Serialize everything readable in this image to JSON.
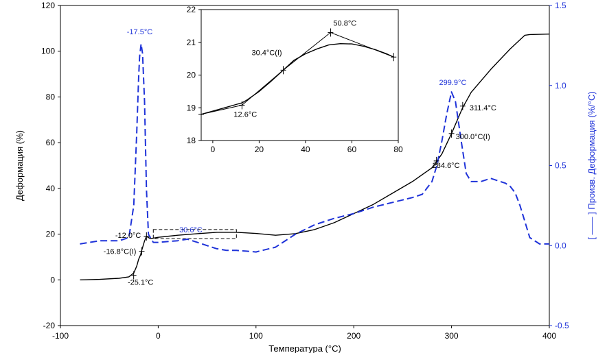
{
  "chart_data": {
    "type": "line",
    "xlabel": "Температура (°C)",
    "ylabel_left": "Деформация (%)",
    "ylabel_right": "[ —— ] Произв. Деформация (%/°C)",
    "xlim": [
      -100,
      400
    ],
    "ylim_left": [
      -20,
      120
    ],
    "ylim_right": [
      -0.5,
      1.5
    ],
    "x_ticks": [
      "-100",
      "0",
      "100",
      "200",
      "300",
      "400"
    ],
    "y_left_ticks": [
      "-20",
      "0",
      "20",
      "40",
      "60",
      "80",
      "100",
      "120"
    ],
    "y_right_ticks": [
      "-0.5",
      "0.0",
      "0.5",
      "1.0",
      "1.5"
    ],
    "colors": {
      "deformation": "#000000",
      "derivative": "#1f33d9",
      "axis_right": "#1f33d9"
    },
    "series": [
      {
        "axis": "left",
        "style": "solid",
        "color": "#000000",
        "x": [
          -80,
          -60,
          -40,
          -30,
          -25,
          -22,
          -20,
          -18,
          -16.8,
          -14,
          -12,
          -10,
          -8,
          0,
          20,
          40,
          60,
          80,
          100,
          120,
          140,
          160,
          180,
          200,
          220,
          240,
          260,
          280,
          290,
          300,
          311,
          320,
          340,
          360,
          370,
          375,
          380,
          400
        ],
        "y": [
          0,
          0.2,
          0.7,
          1.3,
          3,
          6,
          9,
          11,
          13,
          17,
          19,
          18.5,
          18,
          18.6,
          19.5,
          20.2,
          20.8,
          20.8,
          20.3,
          19.5,
          20.2,
          22,
          25,
          29,
          33,
          38,
          43,
          49,
          55,
          64,
          75,
          82,
          92,
          101,
          105,
          107,
          107.3,
          107.5
        ]
      },
      {
        "axis": "right",
        "style": "dashed",
        "color": "#1f33d9",
        "x": [
          -80,
          -60,
          -40,
          -30,
          -25,
          -22,
          -20,
          -19,
          -17.5,
          -16,
          -14,
          -12,
          -10,
          -5,
          0,
          10,
          20,
          30,
          40,
          50,
          60,
          70,
          80,
          90,
          100,
          120,
          140,
          160,
          180,
          200,
          220,
          240,
          260,
          270,
          280,
          285,
          290,
          295,
          299.9,
          304,
          310,
          315,
          320,
          330,
          340,
          350,
          355,
          360,
          365,
          370,
          375,
          380,
          390,
          400
        ],
        "y": [
          0.01,
          0.03,
          0.03,
          0.05,
          0.25,
          0.7,
          1.05,
          1.18,
          1.26,
          1.2,
          0.9,
          0.35,
          0.07,
          0.02,
          0.02,
          0.025,
          0.03,
          0.04,
          0.02,
          0,
          -0.02,
          -0.03,
          -0.03,
          -0.035,
          -0.04,
          -0.01,
          0.07,
          0.13,
          0.17,
          0.2,
          0.24,
          0.27,
          0.3,
          0.32,
          0.4,
          0.5,
          0.65,
          0.82,
          0.96,
          0.9,
          0.65,
          0.45,
          0.4,
          0.4,
          0.42,
          0.4,
          0.39,
          0.37,
          0.33,
          0.25,
          0.15,
          0.05,
          0.01,
          0.01
        ]
      }
    ],
    "annotations": [
      {
        "text": "-17.5°C",
        "x": -17.5,
        "y": 1.26,
        "axis": "right",
        "color": "#1f33d9"
      },
      {
        "text": "30.6°C",
        "x": 30.6,
        "y": 0.04,
        "axis": "right",
        "color": "#1f33d9"
      },
      {
        "text": "299.9°C",
        "x": 299.9,
        "y": 0.96,
        "axis": "right",
        "color": "#1f33d9"
      },
      {
        "text": "-12.0°C",
        "x": -12,
        "y": 19,
        "axis": "left",
        "color": "#000000"
      },
      {
        "text": "-16.8°C(I)",
        "x": -16.8,
        "y": 12.5,
        "axis": "left",
        "color": "#000000"
      },
      {
        "text": "-25.1°C",
        "x": -25.1,
        "y": 2,
        "axis": "left",
        "color": "#000000"
      },
      {
        "text": "311.4°C",
        "x": 311.4,
        "y": 76,
        "axis": "left",
        "color": "#000000"
      },
      {
        "text": "300.0°C(I)",
        "x": 300,
        "y": 64,
        "axis": "left",
        "color": "#000000"
      },
      {
        "text": "284.6°C",
        "x": 284.6,
        "y": 52,
        "axis": "left",
        "color": "#000000"
      }
    ],
    "inset": {
      "type": "line",
      "xlim": [
        -5,
        80
      ],
      "ylim": [
        18,
        22
      ],
      "x_ticks": [
        "0",
        "20",
        "40",
        "60",
        "80"
      ],
      "y_ticks": [
        "18",
        "19",
        "20",
        "21",
        "22"
      ],
      "series": [
        {
          "style": "solid",
          "x": [
            -5,
            0,
            5,
            10,
            12.6,
            15,
            20,
            25,
            30.4,
            35,
            40,
            45,
            50,
            55,
            60,
            65,
            70,
            75,
            78
          ],
          "y": [
            18.8,
            18.9,
            19,
            19.1,
            19.15,
            19.25,
            19.5,
            19.8,
            20.15,
            20.45,
            20.65,
            20.8,
            20.92,
            20.96,
            20.95,
            20.88,
            20.78,
            20.65,
            20.55
          ]
        },
        {
          "style": "tangent",
          "x": [
            -5,
            12.6,
            30.4,
            50.8,
            78
          ],
          "y": [
            18.8,
            19.08,
            20.15,
            21.3,
            20.55
          ]
        }
      ],
      "annotations": [
        {
          "text": "50.8°C",
          "x": 50.8,
          "y": 21.3
        },
        {
          "text": "30.4°C(I)",
          "x": 30.4,
          "y": 20.15
        },
        {
          "text": "12.6°C",
          "x": 12.6,
          "y": 19.08
        }
      ]
    }
  }
}
